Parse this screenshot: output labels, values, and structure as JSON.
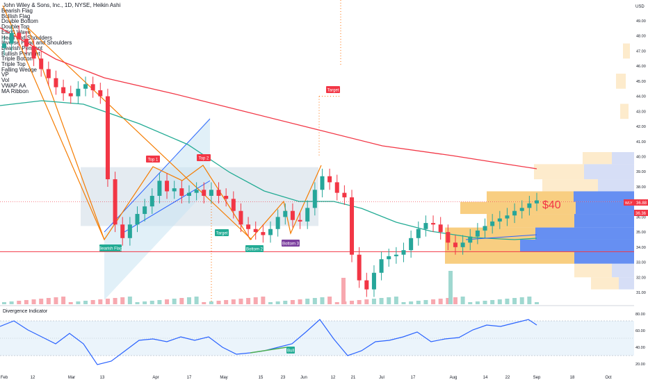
{
  "header": {
    "title": "John Wiley & Sons, Inc., 1D, NYSE, Heikin Ashi"
  },
  "currency": "USD",
  "indicator_list": [
    "Bearish Flag",
    "Bullish Flag",
    "Double Bottom",
    "Double Top",
    "Elliott Wave",
    "Head and Shoulders",
    "Inverse Head and Shoulders",
    "Bearish Pennant",
    "Bullish Pennant",
    "Triple Bottom",
    "Triple Top",
    "Falling Wedge",
    "VP",
    "Vol",
    "VWAP AA",
    "MA Ribbon"
  ],
  "lower_pane": {
    "title": "Divergence Indicator"
  },
  "annotations": {
    "bearish_flag": "Bearish Flag",
    "top1": "Top 1",
    "top2": "Top 2",
    "target1": "Target",
    "target2": "Target",
    "bottom2": "Bottom 2",
    "bottom3": "Bottom 3",
    "bull": "Bull",
    "price_note": "$40"
  },
  "price_badges": {
    "last": "36.88",
    "second": "36.36",
    "symbol": "WLY"
  },
  "colors": {
    "up": "#26a69a",
    "down": "#f23645",
    "ma_red": "#f23645",
    "ma_green": "#22ab94",
    "flag": "#2962ff",
    "pattern": "#f57c00",
    "zone": "#b2c7d8",
    "target": "#ff6d00"
  },
  "chart_data": {
    "type": "candlestick",
    "style": "Heikin Ashi",
    "y_axis": {
      "ticks": [
        31.0,
        32.0,
        33.0,
        34.0,
        35.0,
        36.0,
        37.0,
        38.0,
        39.0,
        40.0,
        41.0,
        42.0,
        43.0,
        44.0,
        45.0,
        46.0,
        47.0,
        48.0,
        49.0
      ],
      "side": "right"
    },
    "x_axis": {
      "ticks": [
        "Feb",
        "12",
        "Mar",
        "13",
        "Apr",
        "17",
        "May",
        "15",
        "23",
        "Jun",
        "12",
        "21",
        "Jul",
        "17",
        "Aug",
        "14",
        "22",
        "Sep",
        "18",
        "Oct"
      ]
    },
    "series": [
      {
        "name": "Price",
        "close_path": [
          47.5,
          48.2,
          47.8,
          47.3,
          46.5,
          45.8,
          45.2,
          44.6,
          44.2,
          44.0,
          44.5,
          44.8,
          44.4,
          44.0,
          38.5,
          35.5,
          34.6,
          35.5,
          36.2,
          36.7,
          37.4,
          38.4,
          37.7,
          37.9,
          37.4,
          37.6,
          37.8,
          37.4,
          37.8,
          37.4,
          37.2,
          36.4,
          35.5,
          35.2,
          35.0,
          34.8,
          35.2,
          36.0,
          36.4,
          35.8,
          35.7,
          36.6,
          37.8,
          38.7,
          38.3,
          37.6,
          37.3,
          33.5,
          31.8,
          31.2,
          32.3,
          33.2,
          33.4,
          33.5,
          33.8,
          34.6,
          35.2,
          35.6,
          35.5,
          35.0,
          34.3,
          34.0,
          34.3,
          34.7,
          35.1,
          35.4,
          35.7,
          35.9,
          36.1,
          36.4,
          36.6,
          36.9,
          37.1
        ]
      }
    ],
    "volume_profile": {
      "levels": [
        31.0,
        32.0,
        33.0,
        34.0,
        35.0,
        36.0,
        37.0,
        38.0,
        39.0,
        40.0
      ]
    }
  }
}
